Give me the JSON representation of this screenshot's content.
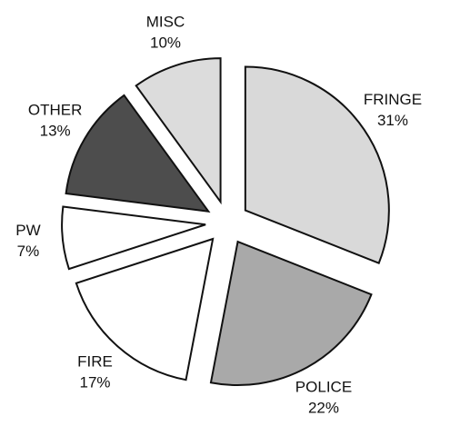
{
  "chart_data": {
    "type": "pie",
    "categories": [
      "FRINGE",
      "POLICE",
      "FIRE",
      "PW",
      "OTHER",
      "MISC"
    ],
    "values": [
      31,
      22,
      17,
      7,
      13,
      10
    ],
    "value_labels": [
      "31%",
      "22%",
      "17%",
      "7%",
      "13%",
      "10%"
    ],
    "colors": [
      "#d9d9d9",
      "#a9a9a9",
      "#ffffff",
      "#ffffff",
      "#4d4d4d",
      "#dcdcdc"
    ],
    "exploded": true
  }
}
